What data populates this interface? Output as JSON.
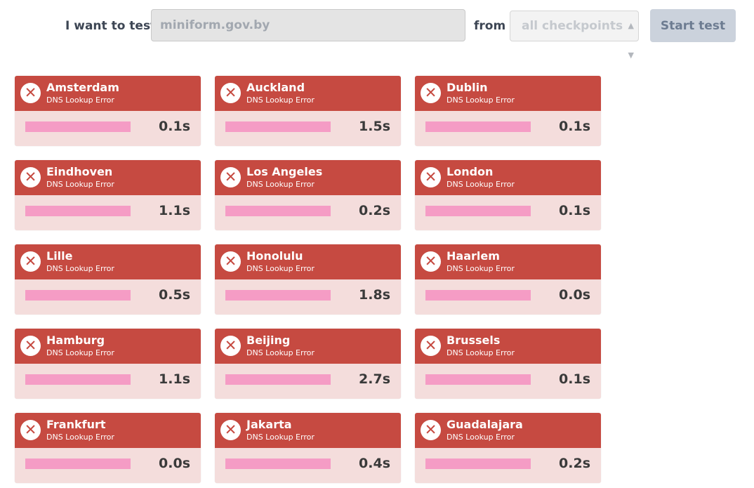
{
  "form": {
    "want_label": "I want to test",
    "url_value": "miniform.gov.by",
    "from_label": "from",
    "checkpoint_selected": "all checkpoints",
    "start_label": "Start test"
  },
  "status_text": "DNS Lookup Error",
  "error_icon_glyph": "✕",
  "colors": {
    "error_header": "#c64a41",
    "card_body": "#f4dddc",
    "bar": "#f59cc5"
  },
  "results": [
    {
      "city": "Amsterdam",
      "status": "DNS Lookup Error",
      "time": "0.1s"
    },
    {
      "city": "Auckland",
      "status": "DNS Lookup Error",
      "time": "1.5s"
    },
    {
      "city": "Dublin",
      "status": "DNS Lookup Error",
      "time": "0.1s"
    },
    {
      "city": "Eindhoven",
      "status": "DNS Lookup Error",
      "time": "1.1s"
    },
    {
      "city": "Los Angeles",
      "status": "DNS Lookup Error",
      "time": "0.2s"
    },
    {
      "city": "London",
      "status": "DNS Lookup Error",
      "time": "0.1s"
    },
    {
      "city": "Lille",
      "status": "DNS Lookup Error",
      "time": "0.5s"
    },
    {
      "city": "Honolulu",
      "status": "DNS Lookup Error",
      "time": "1.8s"
    },
    {
      "city": "Haarlem",
      "status": "DNS Lookup Error",
      "time": "0.0s"
    },
    {
      "city": "Hamburg",
      "status": "DNS Lookup Error",
      "time": "1.1s"
    },
    {
      "city": "Beijing",
      "status": "DNS Lookup Error",
      "time": "2.7s"
    },
    {
      "city": "Brussels",
      "status": "DNS Lookup Error",
      "time": "0.1s"
    },
    {
      "city": "Frankfurt",
      "status": "DNS Lookup Error",
      "time": "0.0s"
    },
    {
      "city": "Jakarta",
      "status": "DNS Lookup Error",
      "time": "0.4s"
    },
    {
      "city": "Guadalajara",
      "status": "DNS Lookup Error",
      "time": "0.2s"
    }
  ]
}
